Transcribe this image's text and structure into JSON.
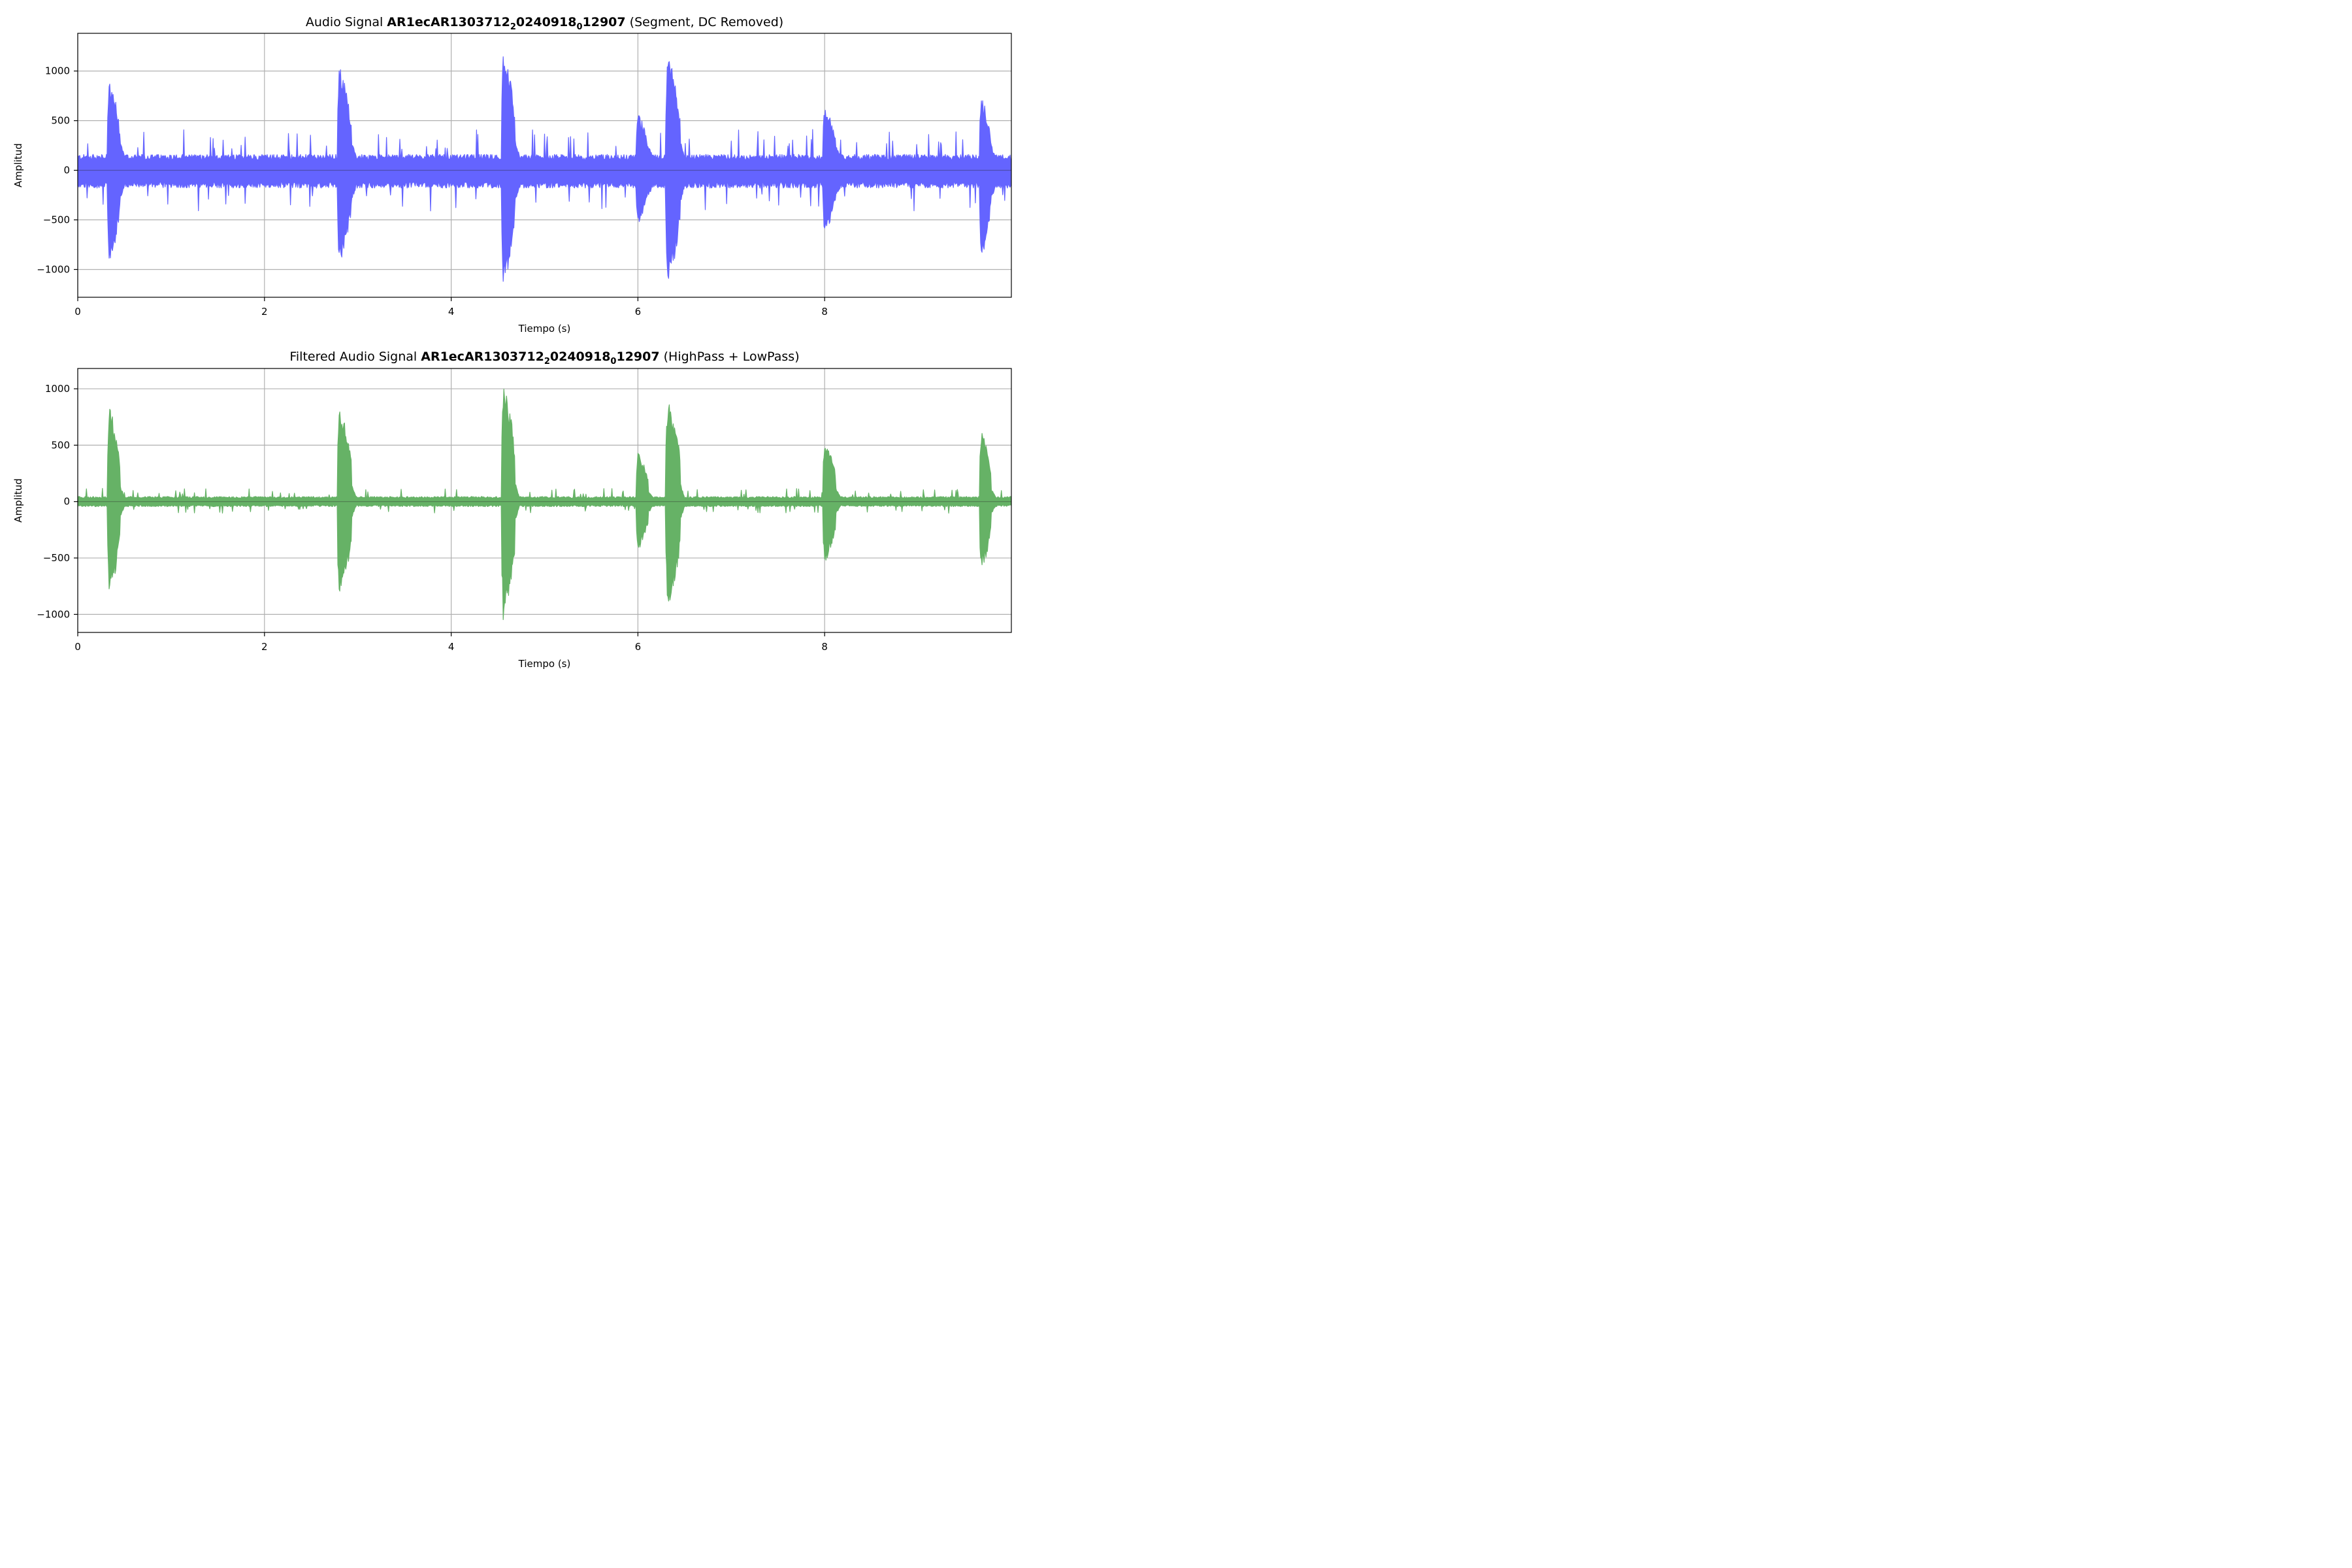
{
  "chart_data": [
    {
      "type": "line",
      "title": {
        "prefix": "Audio Signal ",
        "bold_part1": "AR1ecAR1303712",
        "sub1": "2",
        "bold_part2": "0240918",
        "sub2": "0",
        "bold_part3": "12907",
        "suffix": " (Segment, DC Removed)"
      },
      "xlabel": "Tiempo (s)",
      "ylabel": "Amplitud",
      "xlim": [
        0,
        10
      ],
      "ylim": [
        -1280,
        1380
      ],
      "xticks": [
        0,
        2,
        4,
        6,
        8
      ],
      "xtick_labels": [
        "0",
        "2",
        "4",
        "6",
        "8"
      ],
      "yticks": [
        -1000,
        -500,
        0,
        500,
        1000
      ],
      "ytick_labels": [
        "−1000",
        "−500",
        "0",
        "500",
        "1000"
      ],
      "grid": true,
      "color": "#6464ff",
      "series": [
        {
          "baseline_noise": {
            "upper": 160,
            "lower": -180
          },
          "bursts": [
            {
              "start": 0.32,
              "end": 0.45,
              "max": 940,
              "min": -950
            },
            {
              "start": 2.78,
              "end": 2.93,
              "max": 1060,
              "min": -950
            },
            {
              "start": 4.54,
              "end": 4.68,
              "max": 1260,
              "min": -1160
            },
            {
              "start": 5.98,
              "end": 6.11,
              "max": 580,
              "min": -550
            },
            {
              "start": 6.3,
              "end": 6.45,
              "max": 1160,
              "min": -1150
            },
            {
              "start": 7.98,
              "end": 8.12,
              "max": 670,
              "min": -650
            },
            {
              "start": 9.66,
              "end": 9.78,
              "max": 750,
              "min": -890
            }
          ]
        }
      ]
    },
    {
      "type": "line",
      "title": {
        "prefix": "Filtered Audio Signal ",
        "bold_part1": "AR1ecAR1303712",
        "sub1": "2",
        "bold_part2": "0240918",
        "sub2": "0",
        "bold_part3": "12907",
        "suffix": " (HighPass + LowPass)"
      },
      "xlabel": "Tiempo (s)",
      "ylabel": "Amplitud",
      "xlim": [
        0,
        10
      ],
      "ylim": [
        -1160,
        1180
      ],
      "xticks": [
        0,
        2,
        4,
        6,
        8
      ],
      "xtick_labels": [
        "0",
        "2",
        "4",
        "6",
        "8"
      ],
      "yticks": [
        -1000,
        -500,
        0,
        500,
        1000
      ],
      "ytick_labels": [
        "−1000",
        "−500",
        "0",
        "500",
        "1000"
      ],
      "grid": true,
      "color": "#66b266",
      "series": [
        {
          "baseline_noise": {
            "upper": 45,
            "lower": -45
          },
          "bursts": [
            {
              "start": 0.32,
              "end": 0.45,
              "max": 830,
              "min": -820
            },
            {
              "start": 2.78,
              "end": 2.93,
              "max": 840,
              "min": -840
            },
            {
              "start": 4.54,
              "end": 4.68,
              "max": 1070,
              "min": -1050
            },
            {
              "start": 5.98,
              "end": 6.11,
              "max": 430,
              "min": -430
            },
            {
              "start": 6.3,
              "end": 6.45,
              "max": 930,
              "min": -930
            },
            {
              "start": 7.98,
              "end": 8.12,
              "max": 540,
              "min": -540
            },
            {
              "start": 9.66,
              "end": 9.78,
              "max": 620,
              "min": -620
            }
          ]
        }
      ]
    }
  ]
}
